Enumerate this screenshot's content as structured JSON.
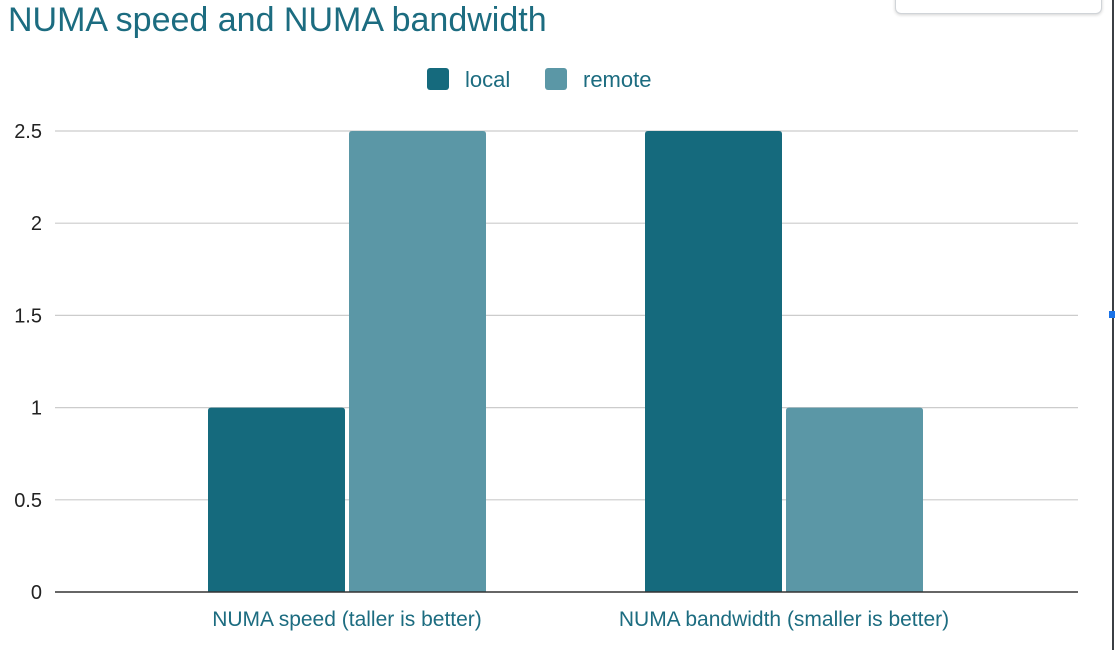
{
  "chart_data": {
    "type": "bar",
    "title": "NUMA speed and NUMA bandwidth",
    "categories": [
      "NUMA speed (taller is better)",
      "NUMA bandwidth (smaller is better)"
    ],
    "series": [
      {
        "name": "local",
        "values": [
          1,
          2.5
        ]
      },
      {
        "name": "remote",
        "values": [
          2.5,
          1
        ]
      }
    ],
    "ylim": [
      0,
      2.5
    ],
    "yticks": [
      "0",
      "0.5",
      "1",
      "1.5",
      "2",
      "2.5"
    ],
    "xlabel": "",
    "ylabel": "",
    "grid": true,
    "legend": "top-center"
  },
  "colors": {
    "local": "#156a7d",
    "remote": "#5b97a6",
    "text_accent": "#1c6c80",
    "gridline": "#cccccc",
    "axis": "#333333",
    "tick_text": "#222222"
  }
}
